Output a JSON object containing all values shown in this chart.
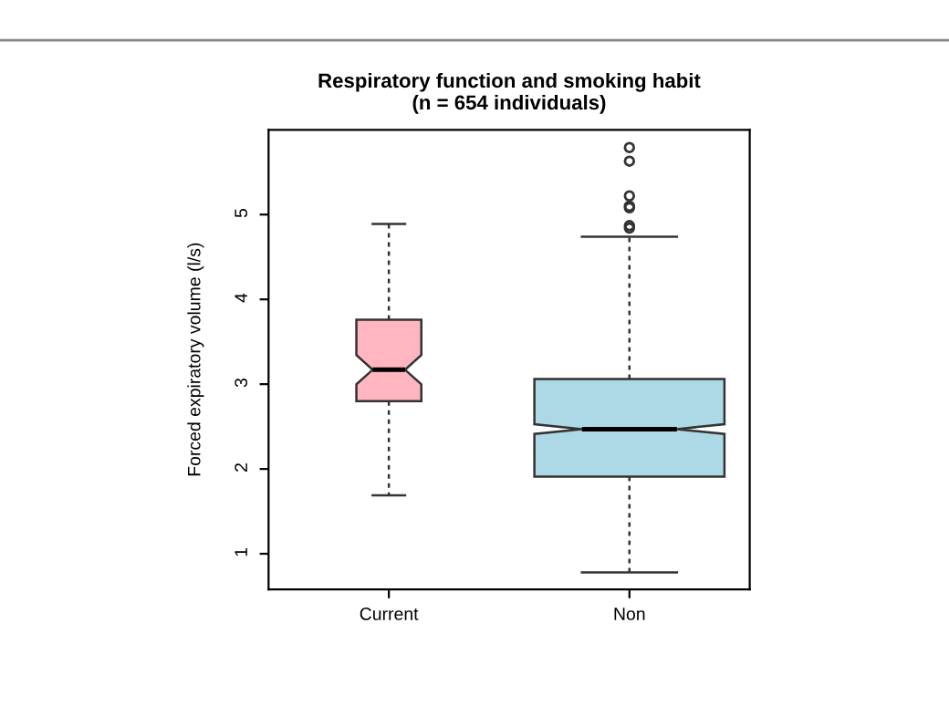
{
  "chart_data": {
    "type": "box",
    "title": "Respiratory function and smoking habit\n(n = 654 individuals)",
    "ylabel": "Forced expiratory volume (l/s)",
    "categories": [
      "Current",
      "Non"
    ],
    "colors": [
      "#ffb6c1",
      "#add8e6"
    ],
    "boxes": [
      {
        "low": 1.69,
        "q1": 2.8,
        "median": 3.17,
        "q3": 3.76,
        "high": 4.89
      },
      {
        "low": 0.78,
        "q1": 1.91,
        "median": 2.47,
        "q3": 3.06,
        "high": 4.74,
        "outliers": [
          5.79,
          5.63,
          5.22,
          5.1,
          5.08,
          4.87,
          4.84
        ]
      }
    ],
    "ylim": [
      0.58,
      6.0
    ],
    "yticks": [
      1,
      2,
      3,
      4,
      5
    ],
    "grid": false,
    "legend": false
  }
}
